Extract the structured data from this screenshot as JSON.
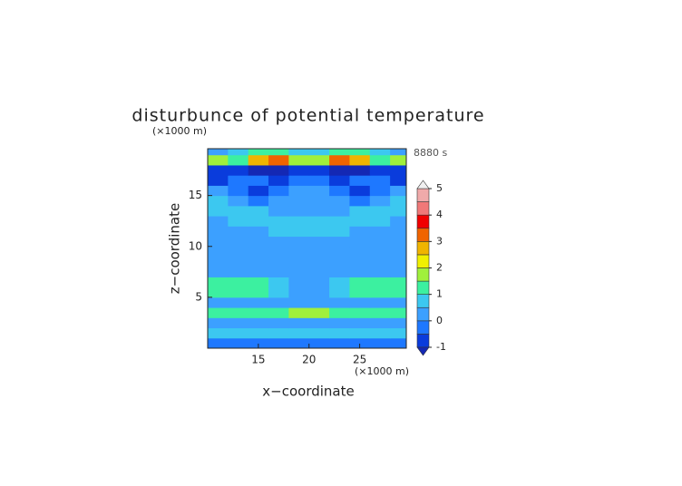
{
  "chart_data": {
    "type": "contour",
    "title": "disturbunce of potential temperature",
    "time_label": "8880 s",
    "x_label": "x−coordinate",
    "y_label": "z−coordinate",
    "x_unit": "(×1000 m)",
    "y_unit": "(×1000 m)",
    "xlim": [
      10,
      29.6
    ],
    "ylim": [
      0,
      19.6
    ],
    "xticks": [
      15,
      20,
      25
    ],
    "yticks": [
      5,
      10,
      15
    ],
    "x": [
      11,
      13,
      15,
      17,
      19,
      21,
      23,
      25,
      27,
      29
    ],
    "y": [
      0.5,
      1.5,
      2.5,
      3.5,
      4.5,
      5.5,
      6.5,
      7.5,
      8.5,
      9.5,
      10.5,
      11.5,
      12.5,
      13.5,
      14.5,
      15.5,
      16.5,
      17.5,
      18.5,
      19.5
    ],
    "z": [
      [
        -0.2,
        -0.2,
        -0.2,
        -0.2,
        -0.2,
        -0.2,
        -0.2,
        -0.2,
        -0.2,
        -0.2
      ],
      [
        0.8,
        0.8,
        0.7,
        0.7,
        0.6,
        0.6,
        0.7,
        0.7,
        0.8,
        0.8
      ],
      [
        0.3,
        0.3,
        0.3,
        0.3,
        0.3,
        0.3,
        0.3,
        0.3,
        0.3,
        0.3
      ],
      [
        1.2,
        1.2,
        1.2,
        1.3,
        1.6,
        1.6,
        1.3,
        1.2,
        1.2,
        1.2
      ],
      [
        0.4,
        0.4,
        0.4,
        0.4,
        0.3,
        0.3,
        0.4,
        0.4,
        0.4,
        0.4
      ],
      [
        1.1,
        1.1,
        1.1,
        0.8,
        0.4,
        0.4,
        0.8,
        1.1,
        1.1,
        1.1
      ],
      [
        1.1,
        1.1,
        1.0,
        0.7,
        0.3,
        0.3,
        0.7,
        1.0,
        1.1,
        1.1
      ],
      [
        0.3,
        0.3,
        0.3,
        0.3,
        0.3,
        0.3,
        0.3,
        0.3,
        0.3,
        0.3
      ],
      [
        0.2,
        0.2,
        0.2,
        0.2,
        0.1,
        0.1,
        0.2,
        0.2,
        0.2,
        0.2
      ],
      [
        0.3,
        0.3,
        0.3,
        0.3,
        0.2,
        0.2,
        0.3,
        0.3,
        0.3,
        0.3
      ],
      [
        0.4,
        0.4,
        0.4,
        0.3,
        0.3,
        0.3,
        0.3,
        0.4,
        0.4,
        0.4
      ],
      [
        0.3,
        0.3,
        0.4,
        0.6,
        0.8,
        0.8,
        0.6,
        0.4,
        0.3,
        0.3
      ],
      [
        0.4,
        0.6,
        0.8,
        0.7,
        0.5,
        0.5,
        0.7,
        0.8,
        0.6,
        0.4
      ],
      [
        0.9,
        0.8,
        0.5,
        0.3,
        0.2,
        0.2,
        0.3,
        0.5,
        0.8,
        0.9
      ],
      [
        0.6,
        0.3,
        -0.2,
        0.1,
        0.3,
        0.3,
        0.1,
        -0.2,
        0.3,
        0.6
      ],
      [
        0.3,
        -0.3,
        -0.6,
        -0.3,
        0.2,
        0.2,
        -0.3,
        -0.6,
        -0.3,
        0.3
      ],
      [
        -0.6,
        -0.4,
        -0.2,
        -0.6,
        -0.4,
        -0.4,
        -0.6,
        -0.2,
        -0.4,
        -0.6
      ],
      [
        -0.9,
        -0.8,
        -1.1,
        -1.1,
        -0.9,
        -0.9,
        -1.1,
        -1.1,
        -0.8,
        -0.9
      ],
      [
        1.8,
        1.2,
        2.6,
        3.4,
        1.6,
        1.6,
        3.4,
        2.6,
        1.2,
        1.8
      ],
      [
        0.4,
        0.5,
        1.2,
        1.4,
        0.6,
        0.6,
        1.4,
        1.2,
        0.5,
        0.4
      ]
    ],
    "colorbar": {
      "levels": [
        -1,
        -0.5,
        0,
        0.5,
        1,
        1.5,
        2,
        2.5,
        3,
        3.5,
        4,
        4.5,
        5
      ],
      "colors": [
        "#1428b4",
        "#0a3cdc",
        "#1e78ff",
        "#3ca0ff",
        "#3cc8f0",
        "#3cf0a0",
        "#a0f03c",
        "#f0f000",
        "#f0b400",
        "#f06400",
        "#f00000",
        "#f07878",
        "#f0aaaa",
        "#f0f0f0"
      ],
      "ticks": [
        -1,
        0,
        1,
        2,
        3,
        4,
        5
      ]
    }
  }
}
